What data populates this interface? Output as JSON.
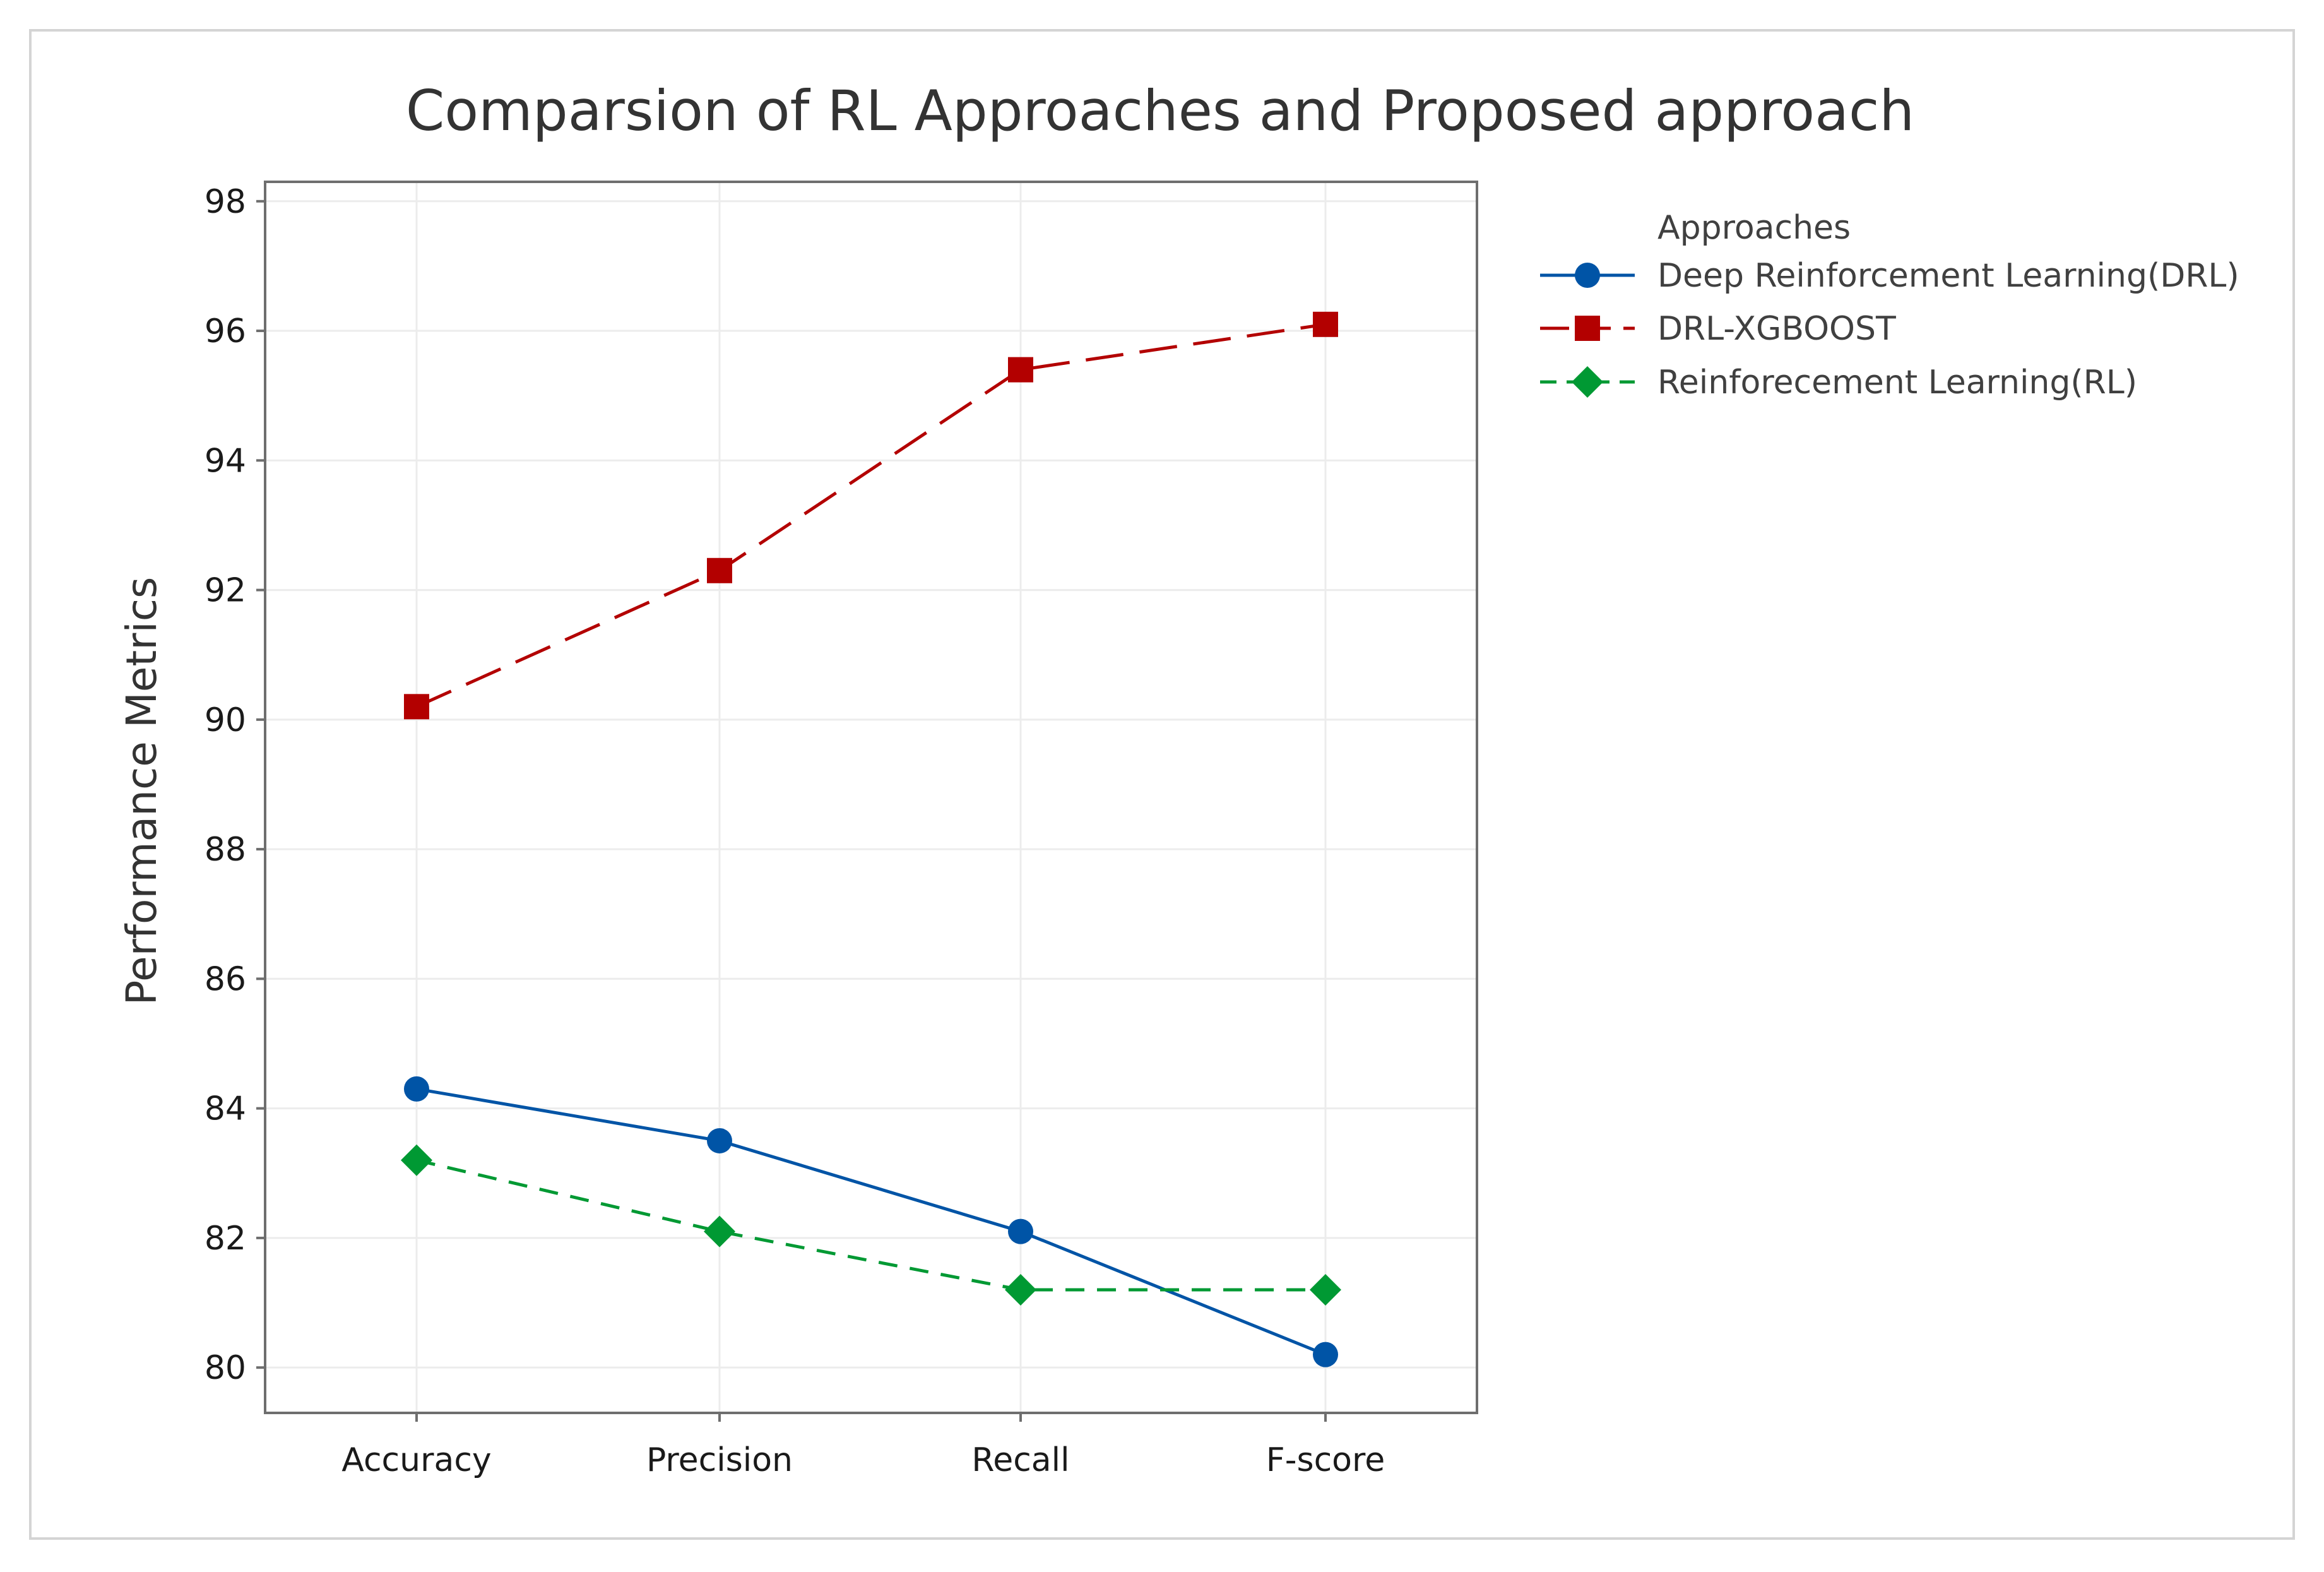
{
  "chart_data": {
    "type": "line",
    "title": "Comparsion of RL Approaches and Proposed approach",
    "xlabel": "",
    "ylabel": "Performance Metrics",
    "categories": [
      "Accuracy",
      "Precision",
      "Recall",
      "F-score"
    ],
    "ylim": [
      79.3,
      98.3
    ],
    "yticks": [
      80,
      82,
      84,
      86,
      88,
      90,
      92,
      94,
      96,
      98
    ],
    "grid": true,
    "legend": {
      "title": "Approaches",
      "position": "right"
    },
    "series": [
      {
        "name": "Deep Reinforcement Learning(DRL)",
        "values": [
          84.3,
          83.5,
          82.1,
          80.2
        ],
        "color": "#0054a6",
        "marker": "circle",
        "line_style": "solid"
      },
      {
        "name": "DRL-XGBOOST",
        "values": [
          90.2,
          92.3,
          95.4,
          96.1
        ],
        "color": "#b30000",
        "marker": "square",
        "line_style": "long-dash"
      },
      {
        "name": "Reinforecement Learning(RL)",
        "values": [
          83.2,
          82.1,
          81.2,
          81.2
        ],
        "color": "#009933",
        "marker": "diamond",
        "line_style": "dash"
      }
    ]
  }
}
